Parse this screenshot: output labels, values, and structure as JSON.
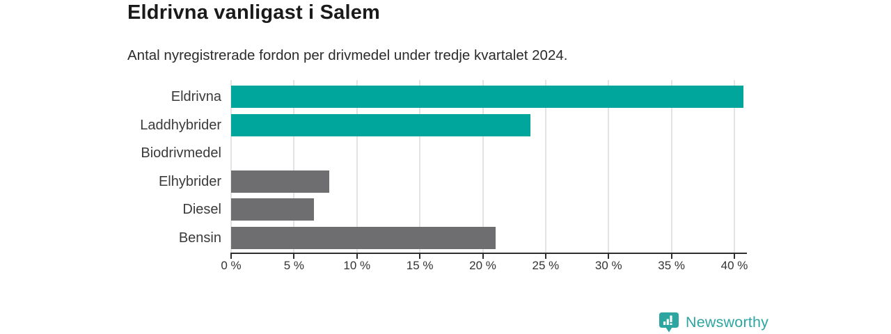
{
  "header": {
    "title": "Eldrivna vanligast i Salem",
    "subtitle": "Antal nyregistrerade fordon per drivmedel under tredje kvartalet 2024."
  },
  "chart_data": {
    "type": "bar",
    "orientation": "horizontal",
    "title": "Eldrivna vanligast i Salem",
    "subtitle": "Antal nyregistrerade fordon per drivmedel under tredje kvartalet 2024.",
    "categories": [
      "Eldrivna",
      "Laddhybrider",
      "Biodrivmedel",
      "Elhybrider",
      "Diesel",
      "Bensin"
    ],
    "values": [
      40.7,
      23.8,
      0,
      7.8,
      6.6,
      21.0
    ],
    "unit": "%",
    "xlabel": "",
    "ylabel": "",
    "xlim": [
      0,
      40
    ],
    "x_tick_step": 5,
    "x_tick_labels": [
      "0 %",
      "5 %",
      "10 %",
      "15 %",
      "20 %",
      "25 %",
      "30 %",
      "35 %",
      "40 %"
    ],
    "bar_colors": [
      "#00a59b",
      "#00a59b",
      "#00a59b",
      "#6e6e71",
      "#6e6e71",
      "#6e6e71"
    ],
    "grid": "vertical",
    "legend": "none",
    "colors": {
      "highlight": "#00a59b",
      "muted": "#6e6e71",
      "gridline": "#e3e3e6",
      "axis": "#2e2e2e",
      "category_label": "#3a3a3a",
      "tick_label": "#333333"
    }
  },
  "footer": {
    "brand": "Newsworthy",
    "brand_color": "#2da5a1",
    "logo_icon": "newsworthy-bubble-barchart-icon"
  }
}
